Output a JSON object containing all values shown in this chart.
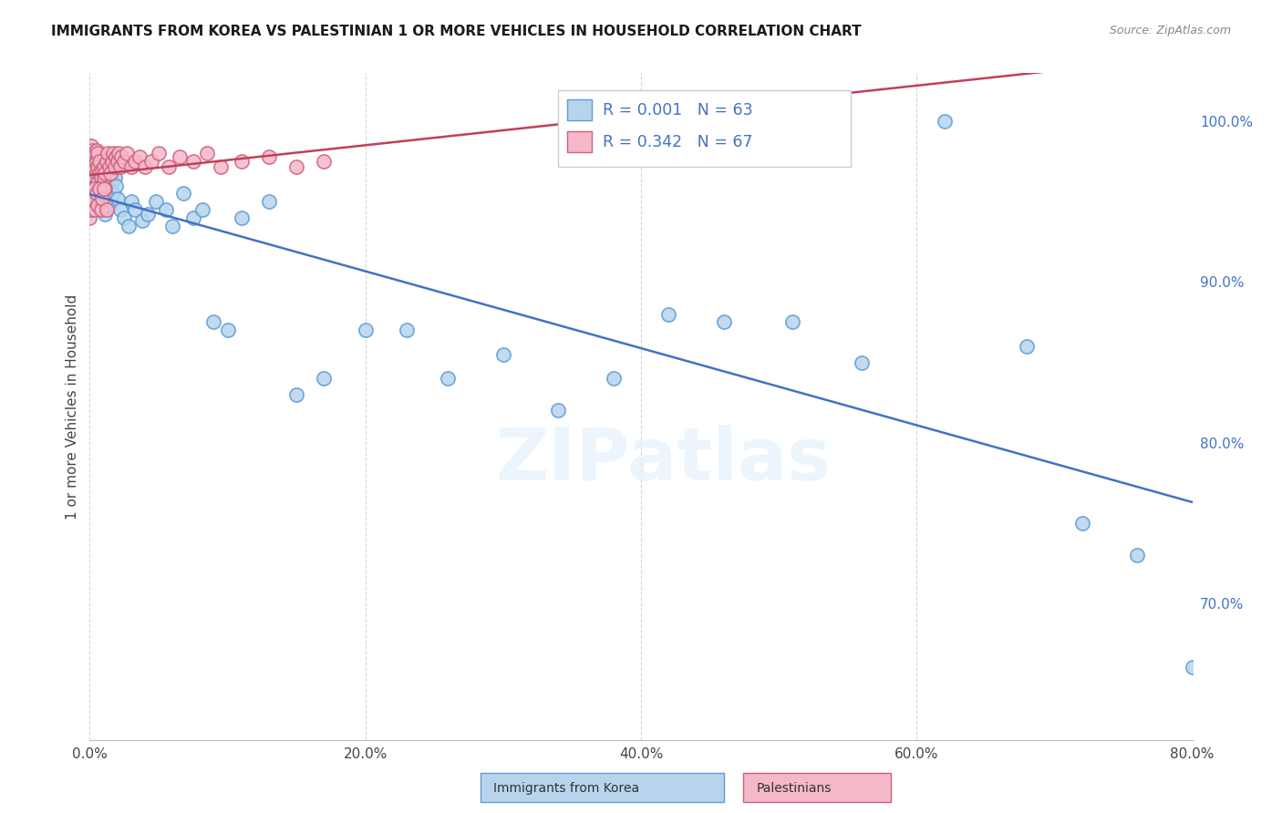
{
  "title": "IMMIGRANTS FROM KOREA VS PALESTINIAN 1 OR MORE VEHICLES IN HOUSEHOLD CORRELATION CHART",
  "source": "Source: ZipAtlas.com",
  "ylabel": "1 or more Vehicles in Household",
  "watermark": "ZIPatlas",
  "legend_korea_R": "R = 0.001",
  "legend_korea_N": "N = 63",
  "legend_pal_R": "R = 0.342",
  "legend_pal_N": "N = 67",
  "color_korea_face": "#b8d4ed",
  "color_korea_edge": "#5b9bd5",
  "color_pal_face": "#f4b8c8",
  "color_pal_edge": "#d06080",
  "color_korea_line": "#4472c4",
  "color_pal_line": "#c0405a",
  "color_text_blue": "#4472c4",
  "x_min": 0.0,
  "x_max": 0.8,
  "y_min": 0.615,
  "y_max": 1.03,
  "x_ticks": [
    0.0,
    0.2,
    0.4,
    0.6,
    0.8
  ],
  "y_ticks_right": [
    0.7,
    0.8,
    0.9,
    1.0
  ],
  "korea_x": [
    0.001,
    0.002,
    0.003,
    0.003,
    0.004,
    0.004,
    0.005,
    0.005,
    0.006,
    0.006,
    0.007,
    0.007,
    0.008,
    0.008,
    0.009,
    0.009,
    0.01,
    0.01,
    0.011,
    0.011,
    0.012,
    0.013,
    0.014,
    0.015,
    0.016,
    0.017,
    0.018,
    0.019,
    0.02,
    0.022,
    0.025,
    0.028,
    0.03,
    0.033,
    0.038,
    0.042,
    0.048,
    0.055,
    0.06,
    0.068,
    0.075,
    0.082,
    0.09,
    0.1,
    0.11,
    0.13,
    0.15,
    0.17,
    0.2,
    0.23,
    0.26,
    0.3,
    0.34,
    0.38,
    0.42,
    0.46,
    0.51,
    0.56,
    0.62,
    0.68,
    0.72,
    0.76,
    0.8
  ],
  "korea_y": [
    0.965,
    0.97,
    0.96,
    0.975,
    0.955,
    0.98,
    0.95,
    0.972,
    0.962,
    0.978,
    0.948,
    0.968,
    0.958,
    0.974,
    0.945,
    0.965,
    0.955,
    0.97,
    0.942,
    0.962,
    0.952,
    0.958,
    0.948,
    0.96,
    0.968,
    0.955,
    0.965,
    0.96,
    0.952,
    0.945,
    0.94,
    0.935,
    0.95,
    0.945,
    0.938,
    0.942,
    0.95,
    0.945,
    0.935,
    0.955,
    0.94,
    0.945,
    0.875,
    0.87,
    0.94,
    0.95,
    0.83,
    0.84,
    0.87,
    0.87,
    0.84,
    0.855,
    0.82,
    0.84,
    0.88,
    0.875,
    0.875,
    0.85,
    1.0,
    0.86,
    0.75,
    0.73,
    0.66
  ],
  "pal_x": [
    0.001,
    0.001,
    0.002,
    0.002,
    0.003,
    0.003,
    0.003,
    0.004,
    0.004,
    0.005,
    0.005,
    0.005,
    0.006,
    0.006,
    0.006,
    0.007,
    0.007,
    0.007,
    0.008,
    0.008,
    0.009,
    0.009,
    0.01,
    0.01,
    0.011,
    0.011,
    0.012,
    0.013,
    0.014,
    0.015,
    0.016,
    0.017,
    0.018,
    0.019,
    0.02,
    0.021,
    0.022,
    0.023,
    0.025,
    0.027,
    0.03,
    0.033,
    0.036,
    0.04,
    0.045,
    0.05,
    0.057,
    0.065,
    0.075,
    0.085,
    0.095,
    0.11,
    0.13,
    0.15,
    0.17,
    0.0,
    0.001,
    0.002,
    0.003,
    0.004,
    0.005,
    0.006,
    0.007,
    0.008,
    0.009,
    0.01,
    0.012
  ],
  "pal_y": [
    0.978,
    0.985,
    0.975,
    0.982,
    0.965,
    0.972,
    0.98,
    0.96,
    0.975,
    0.968,
    0.975,
    0.982,
    0.962,
    0.972,
    0.98,
    0.958,
    0.968,
    0.975,
    0.955,
    0.965,
    0.96,
    0.97,
    0.965,
    0.972,
    0.958,
    0.968,
    0.975,
    0.98,
    0.972,
    0.968,
    0.975,
    0.98,
    0.972,
    0.978,
    0.975,
    0.98,
    0.972,
    0.978,
    0.975,
    0.98,
    0.972,
    0.975,
    0.978,
    0.972,
    0.975,
    0.98,
    0.972,
    0.978,
    0.975,
    0.98,
    0.972,
    0.975,
    0.978,
    0.972,
    0.975,
    0.94,
    0.945,
    0.952,
    0.958,
    0.945,
    0.955,
    0.948,
    0.958,
    0.945,
    0.952,
    0.958,
    0.945
  ]
}
